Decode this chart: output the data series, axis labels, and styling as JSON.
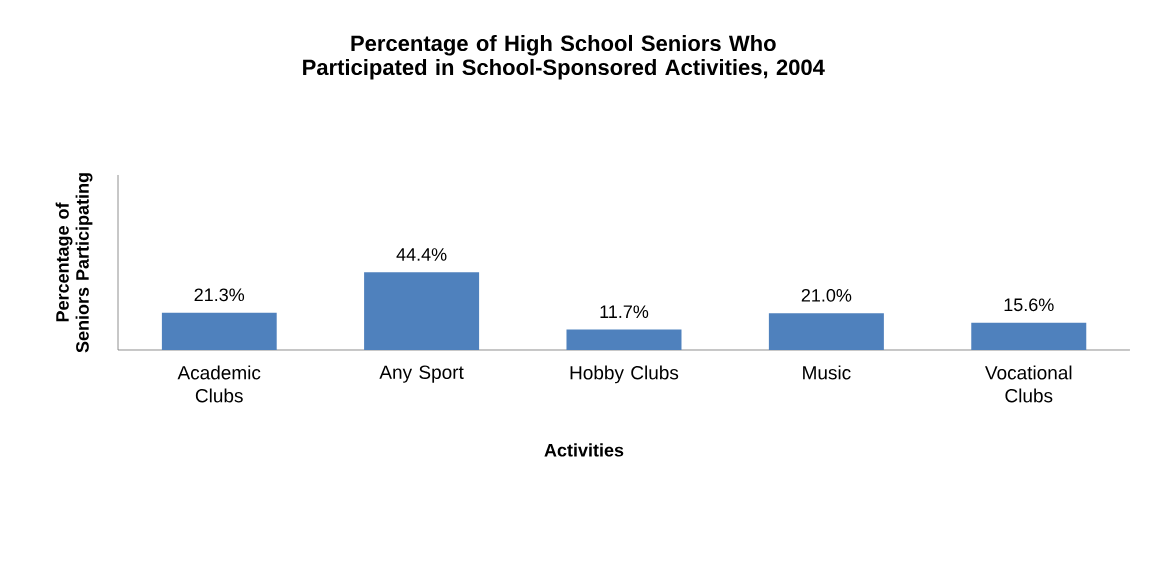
{
  "chart_data": {
    "type": "bar",
    "title": "Percentage of High School Seniors Who Participated in School-Sponsored Activities, 2004",
    "xlabel": "Activities",
    "ylabel": "Percentage of Seniors Participating",
    "categories": [
      "Academic Clubs",
      "Any Sport",
      "Hobby Clubs",
      "Music",
      "Vocational Clubs"
    ],
    "values": [
      21.3,
      44.4,
      11.7,
      21.0,
      15.6
    ],
    "value_labels": [
      "21.3%",
      "44.4%",
      "11.7%",
      "21.0%",
      "15.6%"
    ],
    "color": "#4f81bd",
    "ylim": [
      0,
      100
    ],
    "tick_labels": "x"
  }
}
